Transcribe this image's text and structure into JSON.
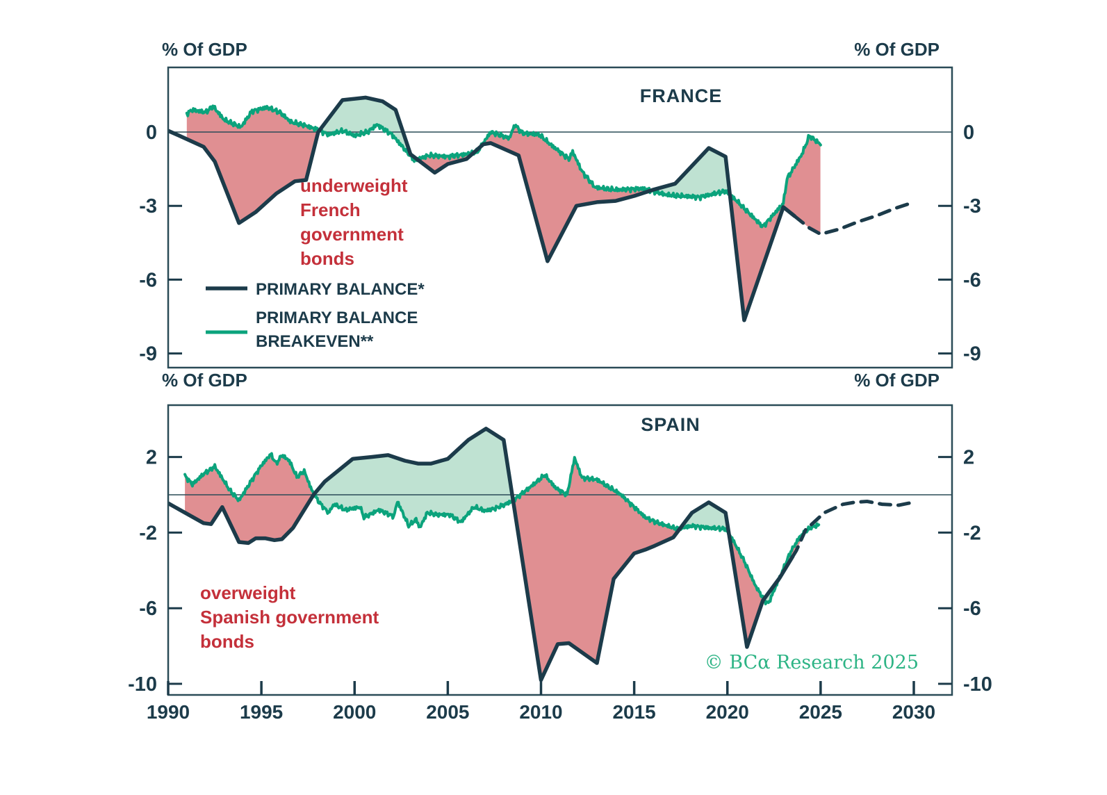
{
  "axis_unit_label": "% Of GDP",
  "titles": {
    "france": "FRANCE",
    "spain": "SPAIN"
  },
  "legend": {
    "balance_label": "PRIMARY BALANCE*",
    "breakeven_label_line1": "PRIMARY BALANCE",
    "breakeven_label_line2": "BREAKEVEN**"
  },
  "annotations": {
    "france_lines": [
      "underweight",
      "French",
      "government",
      "bonds"
    ],
    "spain_lines": [
      "overweight",
      "Spanish government",
      "bonds"
    ]
  },
  "copyright": "© BCα Research 2025",
  "colors": {
    "ink": "#1c3b4a",
    "border": "#2a4b57",
    "balance_line": "#1c3b4a",
    "breakeven_line": "#0ba37c",
    "fill_positive_mint": "#bfe2d2",
    "fill_negative_rose": "#e08f92",
    "annotation_red": "#c4303a",
    "copyright_green": "#2db485",
    "background": "#ffffff"
  },
  "x_axis": {
    "ticks": [
      1990,
      1995,
      2000,
      2005,
      2010,
      2015,
      2020,
      2025,
      2030
    ]
  },
  "chart_data": [
    {
      "id": "france",
      "type": "line",
      "title": "FRANCE",
      "ylabel": "% Of GDP",
      "ylim": [
        -9.6,
        2.6
      ],
      "grid": false,
      "legend_position": "inside-left",
      "y_ticks": [
        {
          "value": 0,
          "label": "0",
          "tick": false
        },
        {
          "value": -3,
          "label": "-3",
          "tick": true
        },
        {
          "value": -6,
          "label": "-6",
          "tick": true
        },
        {
          "value": -9,
          "label": "-9",
          "tick": true
        }
      ],
      "series": [
        {
          "name": "PRIMARY BALANCE*",
          "color_key": "balance_line",
          "dash_from": 2023.6,
          "points": [
            [
              1990,
              0.05
            ],
            [
              1990.6,
              -0.15
            ],
            [
              1991.9,
              -0.6
            ],
            [
              1992.5,
              -1.2
            ],
            [
              1993.8,
              -3.7
            ],
            [
              1994.7,
              -3.25
            ],
            [
              1995.8,
              -2.5
            ],
            [
              1996.8,
              -2.0
            ],
            [
              1997.4,
              -1.95
            ],
            [
              1998.05,
              0
            ],
            [
              1999.35,
              1.3
            ],
            [
              2000.6,
              1.4
            ],
            [
              2001.5,
              1.25
            ],
            [
              2002.2,
              0.9
            ],
            [
              2003,
              -0.9
            ],
            [
              2004.3,
              -1.65
            ],
            [
              2005,
              -1.3
            ],
            [
              2006,
              -1.1
            ],
            [
              2006.9,
              -0.5
            ],
            [
              2007.3,
              -0.45
            ],
            [
              2008.8,
              -0.95
            ],
            [
              2010.35,
              -5.25
            ],
            [
              2011.9,
              -3.0
            ],
            [
              2013,
              -2.85
            ],
            [
              2014,
              -2.8
            ],
            [
              2015,
              -2.6
            ],
            [
              2016,
              -2.35
            ],
            [
              2017.2,
              -2.1
            ],
            [
              2019,
              -0.65
            ],
            [
              2019.9,
              -1.0
            ],
            [
              2020.9,
              -7.65
            ],
            [
              2023.0,
              -3.05
            ],
            [
              2024.4,
              -3.9
            ],
            [
              2025,
              -4.15
            ],
            [
              2026,
              -3.95
            ],
            [
              2027,
              -3.65
            ],
            [
              2028,
              -3.4
            ],
            [
              2029,
              -3.1
            ],
            [
              2030,
              -2.85
            ]
          ]
        },
        {
          "name": "PRIMARY BALANCE BREAKEVEN**",
          "color_key": "breakeven_line",
          "noise": 0.1,
          "points": [
            [
              1991,
              0.75
            ],
            [
              1991.3,
              0.9
            ],
            [
              1992,
              0.8
            ],
            [
              1992.4,
              1.05
            ],
            [
              1993,
              0.5
            ],
            [
              1993.9,
              0.2
            ],
            [
              1994.5,
              0.85
            ],
            [
              1995.3,
              1.0
            ],
            [
              1996,
              0.8
            ],
            [
              1996.6,
              0.4
            ],
            [
              1997.2,
              0.3
            ],
            [
              1998,
              0.1
            ],
            [
              1998.6,
              -0.1
            ],
            [
              1999.4,
              0.05
            ],
            [
              2000,
              -0.15
            ],
            [
              2000.7,
              0.0
            ],
            [
              2001.2,
              0.3
            ],
            [
              2002,
              -0.1
            ],
            [
              2003.2,
              -1.15
            ],
            [
              2004,
              -0.95
            ],
            [
              2005,
              -1.0
            ],
            [
              2006,
              -0.9
            ],
            [
              2006.6,
              -0.8
            ],
            [
              2007.3,
              0.0
            ],
            [
              2008.3,
              -0.25
            ],
            [
              2008.6,
              0.3
            ],
            [
              2009,
              -0.05
            ],
            [
              2009.9,
              -0.1
            ],
            [
              2010.5,
              -0.5
            ],
            [
              2011.5,
              -1.1
            ],
            [
              2011.7,
              -0.8
            ],
            [
              2012.2,
              -1.6
            ],
            [
              2012.9,
              -2.25
            ],
            [
              2014,
              -2.35
            ],
            [
              2015.5,
              -2.3
            ],
            [
              2016.7,
              -2.55
            ],
            [
              2017.5,
              -2.6
            ],
            [
              2018.5,
              -2.65
            ],
            [
              2019.9,
              -2.4
            ],
            [
              2020.5,
              -2.8
            ],
            [
              2021.9,
              -3.85
            ],
            [
              2023.0,
              -2.9
            ],
            [
              2023.2,
              -1.9
            ],
            [
              2024,
              -0.9
            ],
            [
              2024.4,
              -0.15
            ],
            [
              2025,
              -0.5
            ]
          ]
        }
      ],
      "fills": {
        "positive": "balance above breakeven (mint)",
        "negative": "balance below breakeven (rose)"
      },
      "annotation": "underweight French government bonds"
    },
    {
      "id": "spain",
      "type": "line",
      "title": "SPAIN",
      "ylabel": "% Of GDP",
      "ylim": [
        -10.6,
        4.7
      ],
      "grid": false,
      "y_ticks": [
        {
          "value": 2,
          "label": "2",
          "tick": true
        },
        {
          "value": -2,
          "label": "-2",
          "tick": true
        },
        {
          "value": -6,
          "label": "-6",
          "tick": true
        },
        {
          "value": -10,
          "label": "-10",
          "tick": true
        }
      ],
      "series": [
        {
          "name": "PRIMARY BALANCE*",
          "color_key": "balance_line",
          "dash_from": 2023.5,
          "points": [
            [
              1990,
              -0.45
            ],
            [
              1991.9,
              -1.5
            ],
            [
              1992.3,
              -1.55
            ],
            [
              1992.9,
              -0.65
            ],
            [
              1993.8,
              -2.5
            ],
            [
              1994.3,
              -2.55
            ],
            [
              1994.7,
              -2.3
            ],
            [
              1995.2,
              -2.3
            ],
            [
              1995.7,
              -2.4
            ],
            [
              1996.1,
              -2.35
            ],
            [
              1996.7,
              -1.75
            ],
            [
              1997.8,
              0.0
            ],
            [
              1998.4,
              0.7
            ],
            [
              1999.9,
              1.9
            ],
            [
              2000.9,
              2.0
            ],
            [
              2001.8,
              2.1
            ],
            [
              2002.7,
              1.8
            ],
            [
              2003.4,
              1.65
            ],
            [
              2004.1,
              1.65
            ],
            [
              2005,
              1.9
            ],
            [
              2006.1,
              2.9
            ],
            [
              2007.05,
              3.5
            ],
            [
              2008,
              2.9
            ],
            [
              2010,
              -9.8
            ],
            [
              2010.9,
              -7.9
            ],
            [
              2011.5,
              -7.85
            ],
            [
              2013,
              -8.9
            ],
            [
              2013.9,
              -4.45
            ],
            [
              2015,
              -3.1
            ],
            [
              2015.6,
              -2.9
            ],
            [
              2016.1,
              -2.7
            ],
            [
              2017.1,
              -2.25
            ],
            [
              2018.1,
              -0.95
            ],
            [
              2019,
              -0.4
            ],
            [
              2019.9,
              -0.95
            ],
            [
              2021.05,
              -8.05
            ],
            [
              2021.9,
              -5.6
            ],
            [
              2022.8,
              -4.4
            ],
            [
              2023.7,
              -2.95
            ],
            [
              2024.2,
              -1.85
            ],
            [
              2025.2,
              -0.95
            ],
            [
              2026.2,
              -0.5
            ],
            [
              2026.8,
              -0.4
            ],
            [
              2027.5,
              -0.35
            ],
            [
              2028.3,
              -0.5
            ],
            [
              2029.2,
              -0.55
            ],
            [
              2029.7,
              -0.45
            ],
            [
              2030.1,
              -0.4
            ]
          ]
        },
        {
          "name": "PRIMARY BALANCE BREAKEVEN**",
          "color_key": "breakeven_line",
          "noise": 0.12,
          "points": [
            [
              1990.9,
              1.0
            ],
            [
              1991.3,
              0.55
            ],
            [
              1991.9,
              1.1
            ],
            [
              1992.5,
              1.5
            ],
            [
              1993.3,
              0.25
            ],
            [
              1993.8,
              -0.3
            ],
            [
              1994.5,
              0.8
            ],
            [
              1995,
              1.55
            ],
            [
              1995.5,
              2.15
            ],
            [
              1995.8,
              1.65
            ],
            [
              1996.1,
              2.1
            ],
            [
              1996.5,
              1.8
            ],
            [
              1996.9,
              0.95
            ],
            [
              1997.3,
              1.25
            ],
            [
              1997.7,
              0.25
            ],
            [
              1998.1,
              -0.4
            ],
            [
              1998.6,
              -0.95
            ],
            [
              1998.9,
              -0.5
            ],
            [
              1999.5,
              -0.8
            ],
            [
              2000.3,
              -0.65
            ],
            [
              2000.5,
              -1.2
            ],
            [
              2001.3,
              -0.8
            ],
            [
              2002.1,
              -1.15
            ],
            [
              2002.3,
              -0.35
            ],
            [
              2002.9,
              -1.65
            ],
            [
              2003.3,
              -1.3
            ],
            [
              2003.5,
              -1.75
            ],
            [
              2003.9,
              -0.95
            ],
            [
              2004.4,
              -1.05
            ],
            [
              2005.1,
              -1.05
            ],
            [
              2005.7,
              -1.45
            ],
            [
              2006.4,
              -0.65
            ],
            [
              2007,
              -0.85
            ],
            [
              2007.6,
              -0.7
            ],
            [
              2008.1,
              -0.5
            ],
            [
              2008.5,
              -0.3
            ],
            [
              2009.1,
              0.15
            ],
            [
              2009.6,
              0.55
            ],
            [
              2010.2,
              1.05
            ],
            [
              2010.8,
              0.35
            ],
            [
              2011.4,
              0.0
            ],
            [
              2011.8,
              1.95
            ],
            [
              2012.2,
              0.9
            ],
            [
              2013,
              0.8
            ],
            [
              2013.5,
              0.5
            ],
            [
              2013.9,
              0.25
            ],
            [
              2014.3,
              0.0
            ],
            [
              2015,
              -0.65
            ],
            [
              2015.6,
              -1.2
            ],
            [
              2016.3,
              -1.5
            ],
            [
              2017.3,
              -1.8
            ],
            [
              2018.1,
              -1.65
            ],
            [
              2019,
              -1.75
            ],
            [
              2019.9,
              -1.8
            ],
            [
              2020.3,
              -2.4
            ],
            [
              2020.9,
              -3.5
            ],
            [
              2021.5,
              -4.8
            ],
            [
              2022.0,
              -5.6
            ],
            [
              2022.2,
              -5.75
            ],
            [
              2023.1,
              -3.7
            ],
            [
              2023.4,
              -3.0
            ],
            [
              2023.9,
              -2.2
            ],
            [
              2024.5,
              -1.7
            ],
            [
              2024.9,
              -1.6
            ]
          ]
        }
      ],
      "fills": {
        "positive": "balance above breakeven (mint)",
        "negative": "balance below breakeven (rose)"
      },
      "annotation": "overweight Spanish government bonds"
    }
  ]
}
